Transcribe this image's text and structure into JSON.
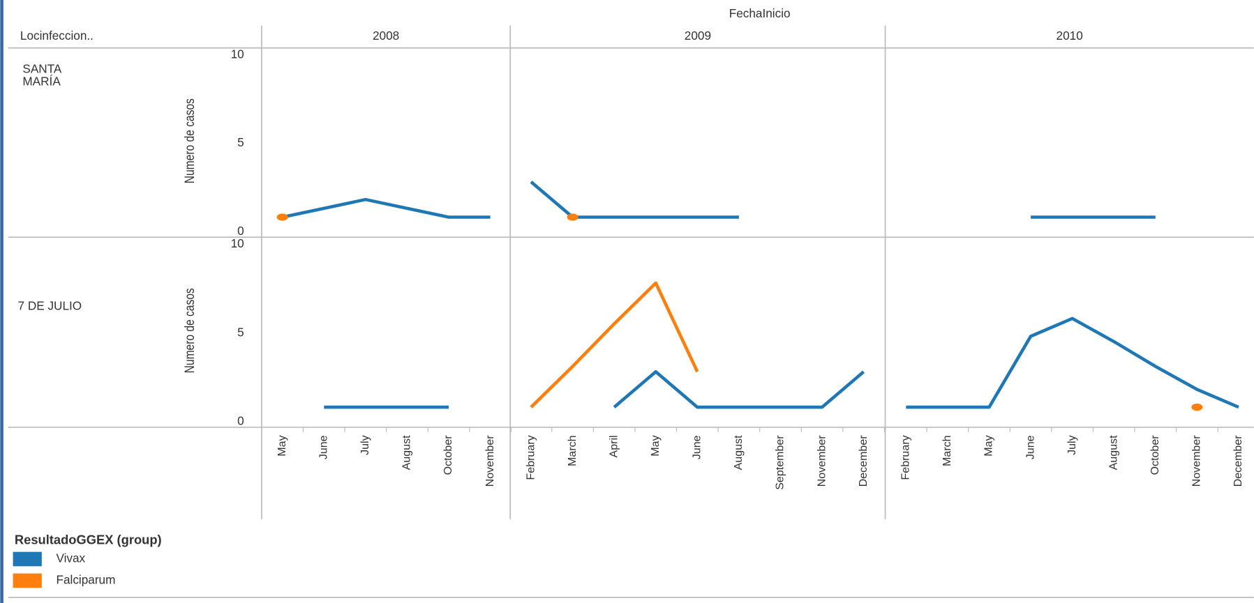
{
  "chart_data": {
    "type": "line",
    "column_title": "FechaInicio",
    "row_header": "Locinfeccion..",
    "ylabel": "Numero de casos",
    "ylim": [
      0,
      10
    ],
    "yticks": [
      0,
      5,
      10
    ],
    "legend": {
      "title": "ResultadoGGEX (group)",
      "items": [
        {
          "name": "Vivax",
          "color": "#1f77b4"
        },
        {
          "name": "Falciparum",
          "color": "#ff7f0e"
        }
      ]
    },
    "columns": [
      {
        "name": "2008",
        "categories": [
          "May",
          "June",
          "July",
          "August",
          "October",
          "November"
        ]
      },
      {
        "name": "2009",
        "categories": [
          "February",
          "March",
          "April",
          "May",
          "June",
          "August",
          "September",
          "November",
          "December"
        ]
      },
      {
        "name": "2010",
        "categories": [
          "February",
          "March",
          "May",
          "June",
          "July",
          "August",
          "October",
          "November",
          "December"
        ]
      }
    ],
    "rows": [
      {
        "name": "SANTA MARÍA",
        "panels": [
          [
            [
              1,
              1.5,
              2,
              1.5,
              1,
              1
            ],
            [
              1,
              null,
              null,
              null,
              null,
              null
            ]
          ],
          [
            [
              3,
              1,
              1,
              1,
              1,
              1,
              null,
              null,
              null
            ],
            [
              null,
              1,
              null,
              null,
              null,
              null,
              null,
              null,
              null
            ]
          ],
          [
            [
              null,
              null,
              null,
              1,
              1,
              1,
              1,
              null,
              null
            ],
            [
              null,
              null,
              null,
              null,
              null,
              null,
              null,
              null,
              null
            ]
          ]
        ]
      },
      {
        "name": "7 DE JULIO",
        "panels": [
          [
            [
              null,
              1,
              1,
              1,
              1,
              null
            ],
            [
              null,
              null,
              null,
              null,
              null,
              null
            ]
          ],
          [
            [
              null,
              null,
              1,
              3,
              1,
              1,
              1,
              1,
              3
            ],
            [
              1,
              3.3,
              5.7,
              8,
              3,
              null,
              null,
              null,
              null
            ]
          ],
          [
            [
              1,
              1,
              1,
              5,
              6,
              4.7,
              3.3,
              2,
              1
            ],
            [
              null,
              null,
              null,
              null,
              null,
              null,
              null,
              1,
              null
            ]
          ]
        ]
      }
    ]
  }
}
